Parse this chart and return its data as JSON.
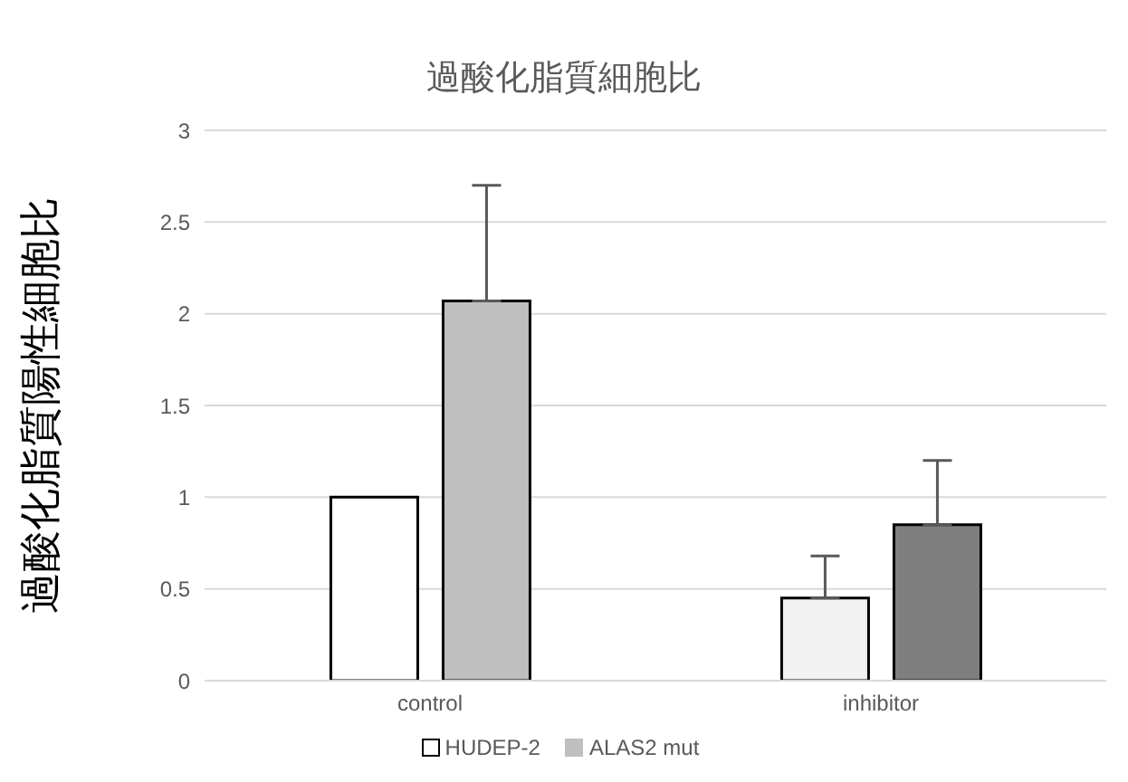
{
  "chart_data": {
    "type": "bar",
    "title": "過酸化脂質細胞比",
    "ylabel": "過酸化脂質陽性細胞比",
    "categories": [
      "control",
      "inhibitor"
    ],
    "series": [
      {
        "name": "HUDEP-2",
        "color": "#ffffff",
        "colors": [
          "#ffffff",
          "#f2f2f2"
        ],
        "values": [
          1,
          0.45
        ],
        "errors": [
          null,
          [
            0.45,
            0.68
          ]
        ]
      },
      {
        "name": "ALAS2 mut",
        "color": "#bfbfbf",
        "colors": [
          "#bfbfbf",
          "#7f7f7f"
        ],
        "values": [
          2.07,
          0.85
        ],
        "errors": [
          [
            2.07,
            2.7
          ],
          [
            0.85,
            1.2
          ]
        ]
      }
    ],
    "ylim": [
      0,
      3
    ],
    "yticks": [
      0,
      0.5,
      1,
      1.5,
      2,
      2.5,
      3
    ],
    "grid": "y",
    "legend": "bottom"
  }
}
